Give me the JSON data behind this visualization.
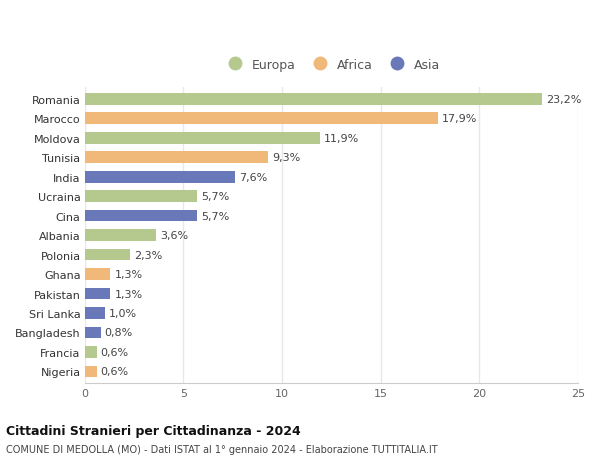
{
  "countries": [
    "Romania",
    "Marocco",
    "Moldova",
    "Tunisia",
    "India",
    "Ucraina",
    "Cina",
    "Albania",
    "Polonia",
    "Ghana",
    "Pakistan",
    "Sri Lanka",
    "Bangladesh",
    "Francia",
    "Nigeria"
  ],
  "values": [
    23.2,
    17.9,
    11.9,
    9.3,
    7.6,
    5.7,
    5.7,
    3.6,
    2.3,
    1.3,
    1.3,
    1.0,
    0.8,
    0.6,
    0.6
  ],
  "labels": [
    "23,2%",
    "17,9%",
    "11,9%",
    "9,3%",
    "7,6%",
    "5,7%",
    "5,7%",
    "3,6%",
    "2,3%",
    "1,3%",
    "1,3%",
    "1,0%",
    "0,8%",
    "0,6%",
    "0,6%"
  ],
  "continents": [
    "Europa",
    "Africa",
    "Europa",
    "Africa",
    "Asia",
    "Europa",
    "Asia",
    "Europa",
    "Europa",
    "Africa",
    "Asia",
    "Asia",
    "Asia",
    "Europa",
    "Africa"
  ],
  "colors": {
    "Europa": "#b5c98e",
    "Africa": "#f0b97a",
    "Asia": "#6878b8"
  },
  "legend_order": [
    "Europa",
    "Africa",
    "Asia"
  ],
  "title1": "Cittadini Stranieri per Cittadinanza - 2024",
  "title2": "COMUNE DI MEDOLLA (MO) - Dati ISTAT al 1° gennaio 2024 - Elaborazione TUTTITALIA.IT",
  "xlim": [
    0,
    25
  ],
  "xticks": [
    0,
    5,
    10,
    15,
    20,
    25
  ],
  "background_color": "#ffffff",
  "grid_color": "#e8e8e8",
  "bar_height": 0.6,
  "label_fontsize": 8,
  "ytick_fontsize": 8,
  "xtick_fontsize": 8
}
